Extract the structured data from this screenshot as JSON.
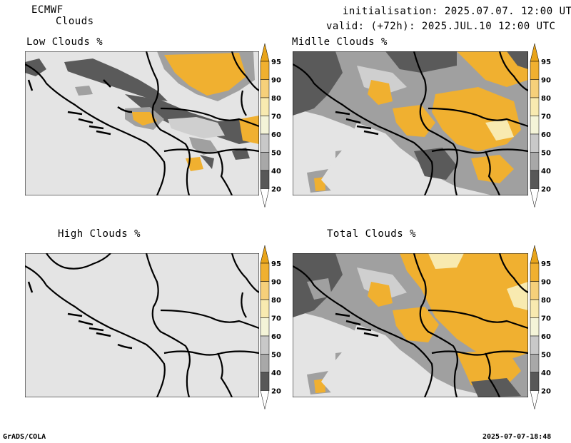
{
  "header": {
    "model": "ECMWF",
    "product": "Clouds",
    "initialisation": "initialisation: 2025.07.07. 12:00 UTC",
    "valid": "valid: (+72h): 2025.JUL.10 12:00 UTC"
  },
  "panels": [
    {
      "title": "Low Clouds %"
    },
    {
      "title": "Midlle Clouds %"
    },
    {
      "title": "High Clouds %"
    },
    {
      "title": "Total Clouds %"
    }
  ],
  "colorbar": {
    "levels": [
      "95",
      "90",
      "80",
      "70",
      "60",
      "50",
      "40",
      "20"
    ],
    "colors": {
      "above95": "#e8a41a",
      "90_95": "#f0b030",
      "80_90": "#f6d07a",
      "70_80": "#f8eab0",
      "60_70": "#f4f4d8",
      "50_60": "#c8c8c8",
      "40_50": "#a8a8a8",
      "20_40": "#585858",
      "below20": "#ffffff"
    }
  },
  "map_colors": {
    "background": "#e4e4e4",
    "dark": "#5a5a5a",
    "mid": "#a0a0a0",
    "light": "#cfcfcf",
    "orange": "#f0b030",
    "pale": "#f8eab0",
    "border": "#000000"
  },
  "footer": {
    "left": "GrADS/COLA",
    "right": "2025-07-07-18:48"
  }
}
